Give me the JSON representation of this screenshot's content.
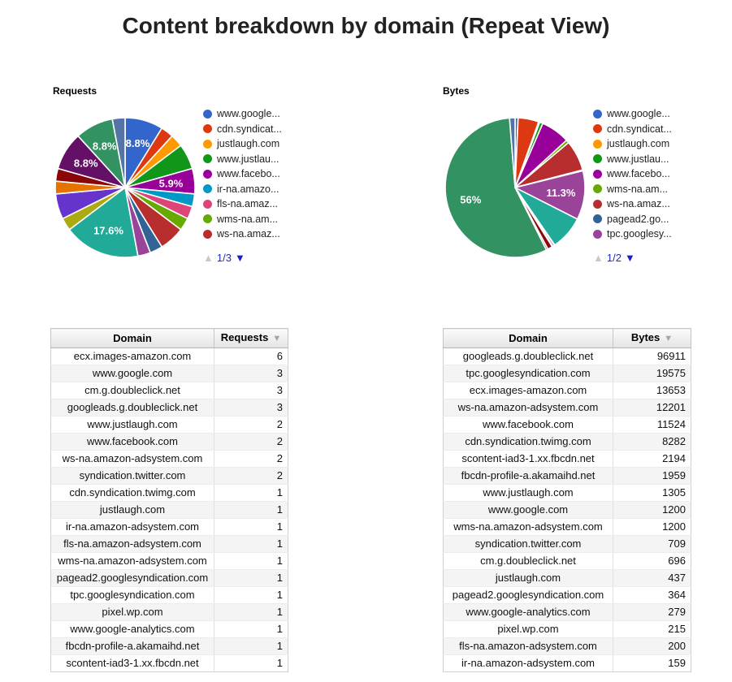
{
  "title": "Content breakdown by domain (Repeat View)",
  "chart_data": [
    {
      "type": "pie",
      "title": "Requests",
      "legend_position": "right",
      "legend_page": "1/3",
      "slices": [
        {
          "domain": "www.google.com",
          "value": 3,
          "color": "#3366CC",
          "label": "8.8%"
        },
        {
          "domain": "cdn.syndication.twimg.com",
          "value": 1,
          "color": "#DC3912",
          "label": null
        },
        {
          "domain": "justlaugh.com",
          "value": 1,
          "color": "#FF9900",
          "label": null
        },
        {
          "domain": "www.justlaugh.com",
          "value": 2,
          "color": "#109618",
          "label": null
        },
        {
          "domain": "www.facebook.com",
          "value": 2,
          "color": "#990099",
          "label": "5.9%"
        },
        {
          "domain": "ir-na.amazon-adsystem.com",
          "value": 1,
          "color": "#0099C6",
          "label": null
        },
        {
          "domain": "fls-na.amazon-adsystem.com",
          "value": 1,
          "color": "#DD4477",
          "label": null
        },
        {
          "domain": "wms-na.amazon-adsystem.com",
          "value": 1,
          "color": "#66AA00",
          "label": null
        },
        {
          "domain": "ws-na.amazon-adsystem.com",
          "value": 2,
          "color": "#B82E2E",
          "label": null
        },
        {
          "domain": "pagead2.googlesyndication.com",
          "value": 1,
          "color": "#316395",
          "label": null
        },
        {
          "domain": "tpc.googlesyndication.com",
          "value": 1,
          "color": "#994499",
          "label": null
        },
        {
          "domain": "ecx.images-amazon.com",
          "value": 6,
          "color": "#22AA99",
          "label": "17.6%"
        },
        {
          "domain": "pixel.wp.com",
          "value": 1,
          "color": "#AAAA11",
          "label": null
        },
        {
          "domain": "syndication.twitter.com",
          "value": 2,
          "color": "#6633CC",
          "label": null
        },
        {
          "domain": "www.google-analytics.com",
          "value": 1,
          "color": "#E67300",
          "label": null
        },
        {
          "domain": "fbcdn-profile-a.akamaihd.net",
          "value": 1,
          "color": "#8B0707",
          "label": null
        },
        {
          "domain": "cm.g.doubleclick.net",
          "value": 3,
          "color": "#651067",
          "label": "8.8%"
        },
        {
          "domain": "googleads.g.doubleclick.net",
          "value": 3,
          "color": "#329262",
          "label": "8.8%"
        },
        {
          "domain": "scontent-iad3-1.xx.fbcdn.net",
          "value": 1,
          "color": "#5574A6",
          "label": null
        }
      ],
      "legend_entries": [
        {
          "label": "www.google...",
          "color": "#3366CC"
        },
        {
          "label": "cdn.syndicat...",
          "color": "#DC3912"
        },
        {
          "label": "justlaugh.com",
          "color": "#FF9900"
        },
        {
          "label": "www.justlau...",
          "color": "#109618"
        },
        {
          "label": "www.facebo...",
          "color": "#990099"
        },
        {
          "label": "ir-na.amazo...",
          "color": "#0099C6"
        },
        {
          "label": "fls-na.amaz...",
          "color": "#DD4477"
        },
        {
          "label": "wms-na.am...",
          "color": "#66AA00"
        },
        {
          "label": "ws-na.amaz...",
          "color": "#B82E2E"
        }
      ]
    },
    {
      "type": "pie",
      "title": "Bytes",
      "legend_position": "right",
      "legend_page": "1/2",
      "slices": [
        {
          "domain": "www.google.com",
          "value": 1200,
          "color": "#3366CC",
          "label": null
        },
        {
          "domain": "cdn.syndication.twimg.com",
          "value": 8282,
          "color": "#DC3912",
          "label": null
        },
        {
          "domain": "justlaugh.com",
          "value": 437,
          "color": "#FF9900",
          "label": null
        },
        {
          "domain": "www.justlaugh.com",
          "value": 1305,
          "color": "#109618",
          "label": null
        },
        {
          "domain": "www.facebook.com",
          "value": 11524,
          "color": "#990099",
          "label": null
        },
        {
          "domain": "wms-na.amazon-adsystem.com",
          "value": 1200,
          "color": "#66AA00",
          "label": null
        },
        {
          "domain": "ws-na.amazon-adsystem.com",
          "value": 12201,
          "color": "#B82E2E",
          "label": null
        },
        {
          "domain": "pagead2.googlesyndication.com",
          "value": 364,
          "color": "#316395",
          "label": null
        },
        {
          "domain": "tpc.googlesyndication.com",
          "value": 19575,
          "color": "#994499",
          "label": "11.3%"
        },
        {
          "domain": "ecx.images-amazon.com",
          "value": 13653,
          "color": "#22AA99",
          "label": null
        },
        {
          "domain": "pixel.wp.com",
          "value": 215,
          "color": "#AAAA11",
          "label": null
        },
        {
          "domain": "syndication.twitter.com",
          "value": 709,
          "color": "#6633CC",
          "label": null
        },
        {
          "domain": "www.google-analytics.com",
          "value": 279,
          "color": "#E67300",
          "label": null
        },
        {
          "domain": "fbcdn-profile-a.akamaihd.net",
          "value": 1959,
          "color": "#8B0707",
          "label": null
        },
        {
          "domain": "cm.g.doubleclick.net",
          "value": 696,
          "color": "#651067",
          "label": null
        },
        {
          "domain": "googleads.g.doubleclick.net",
          "value": 96911,
          "color": "#329262",
          "label": "56%"
        },
        {
          "domain": "scontent-iad3-1.xx.fbcdn.net",
          "value": 2194,
          "color": "#5574A6",
          "label": null
        }
      ],
      "legend_entries": [
        {
          "label": "www.google...",
          "color": "#3366CC"
        },
        {
          "label": "cdn.syndicat...",
          "color": "#DC3912"
        },
        {
          "label": "justlaugh.com",
          "color": "#FF9900"
        },
        {
          "label": "www.justlau...",
          "color": "#109618"
        },
        {
          "label": "www.facebo...",
          "color": "#990099"
        },
        {
          "label": "wms-na.am...",
          "color": "#66AA00"
        },
        {
          "label": "ws-na.amaz...",
          "color": "#B82E2E"
        },
        {
          "label": "pagead2.go...",
          "color": "#316395"
        },
        {
          "label": "tpc.googlesy...",
          "color": "#994499"
        }
      ]
    }
  ],
  "tables": [
    {
      "columns": [
        "Domain",
        "Requests"
      ],
      "rows": [
        [
          "ecx.images-amazon.com",
          "6"
        ],
        [
          "www.google.com",
          "3"
        ],
        [
          "cm.g.doubleclick.net",
          "3"
        ],
        [
          "googleads.g.doubleclick.net",
          "3"
        ],
        [
          "www.justlaugh.com",
          "2"
        ],
        [
          "www.facebook.com",
          "2"
        ],
        [
          "ws-na.amazon-adsystem.com",
          "2"
        ],
        [
          "syndication.twitter.com",
          "2"
        ],
        [
          "cdn.syndication.twimg.com",
          "1"
        ],
        [
          "justlaugh.com",
          "1"
        ],
        [
          "ir-na.amazon-adsystem.com",
          "1"
        ],
        [
          "fls-na.amazon-adsystem.com",
          "1"
        ],
        [
          "wms-na.amazon-adsystem.com",
          "1"
        ],
        [
          "pagead2.googlesyndication.com",
          "1"
        ],
        [
          "tpc.googlesyndication.com",
          "1"
        ],
        [
          "pixel.wp.com",
          "1"
        ],
        [
          "www.google-analytics.com",
          "1"
        ],
        [
          "fbcdn-profile-a.akamaihd.net",
          "1"
        ],
        [
          "scontent-iad3-1.xx.fbcdn.net",
          "1"
        ]
      ]
    },
    {
      "columns": [
        "Domain",
        "Bytes"
      ],
      "rows": [
        [
          "googleads.g.doubleclick.net",
          "96911"
        ],
        [
          "tpc.googlesyndication.com",
          "19575"
        ],
        [
          "ecx.images-amazon.com",
          "13653"
        ],
        [
          "ws-na.amazon-adsystem.com",
          "12201"
        ],
        [
          "www.facebook.com",
          "11524"
        ],
        [
          "cdn.syndication.twimg.com",
          "8282"
        ],
        [
          "scontent-iad3-1.xx.fbcdn.net",
          "2194"
        ],
        [
          "fbcdn-profile-a.akamaihd.net",
          "1959"
        ],
        [
          "www.justlaugh.com",
          "1305"
        ],
        [
          "www.google.com",
          "1200"
        ],
        [
          "wms-na.amazon-adsystem.com",
          "1200"
        ],
        [
          "syndication.twitter.com",
          "709"
        ],
        [
          "cm.g.doubleclick.net",
          "696"
        ],
        [
          "justlaugh.com",
          "437"
        ],
        [
          "pagead2.googlesyndication.com",
          "364"
        ],
        [
          "www.google-analytics.com",
          "279"
        ],
        [
          "pixel.wp.com",
          "215"
        ],
        [
          "fls-na.amazon-adsystem.com",
          "200"
        ],
        [
          "ir-na.amazon-adsystem.com",
          "159"
        ]
      ]
    }
  ],
  "icons": {
    "sort_desc": "▼",
    "page_up": "▲",
    "page_down": "▼"
  },
  "colors": {
    "page_up_disabled": "#c9c9c9",
    "page_down_active": "#1c1ccf",
    "pagination_text": "#2424cf"
  }
}
